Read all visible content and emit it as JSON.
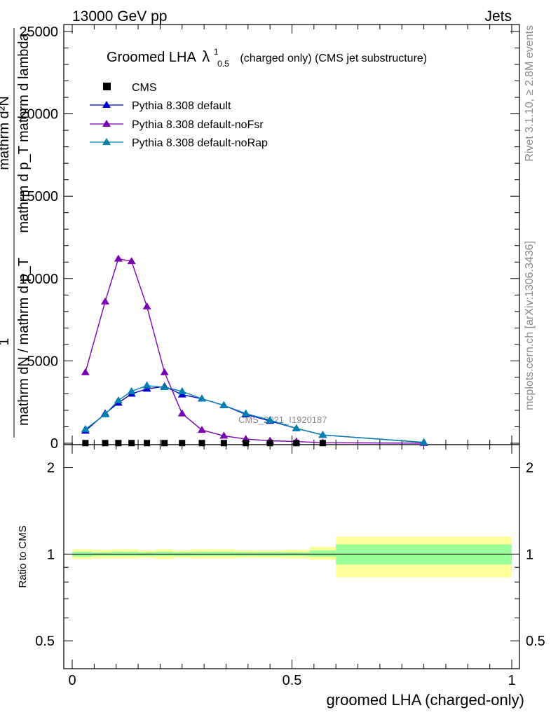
{
  "header": {
    "energy_label": "13000 GeV pp",
    "process_label": "Jets"
  },
  "side_labels": {
    "rivet": "Rivet 3.1.10, ≥ 2.8M events",
    "mcplots": "mcplots.cern.ch [arXiv:1306.3436]"
  },
  "main_panel": {
    "title_prefix": "Groomed LHA",
    "title_lambda": "λ",
    "title_sup": "1",
    "title_sub": "0.5",
    "title_suffix": "(charged only) (CMS jet substructure)",
    "ylabel_numerator": "mathrm d²N",
    "ylabel_numerator_2": "mathrm d p_T mathrm d lambda",
    "ylabel_denominator": "mathrm dN / mathrm d p_T",
    "ylabel_one": "1",
    "ytick_labels": [
      "0",
      "5000",
      "10000",
      "15000",
      "20000",
      "25000"
    ],
    "watermark": "CMS_2021_I1920187",
    "legend": [
      {
        "label": "CMS",
        "marker": "square",
        "color": "#000000"
      },
      {
        "label": "Pythia 8.308 default",
        "marker": "triangle",
        "color": "#0000cc"
      },
      {
        "label": "Pythia 8.308 default-noFsr",
        "marker": "triangle",
        "color": "#7b00b4"
      },
      {
        "label": "Pythia 8.308 default-noRap",
        "marker": "triangle",
        "color": "#0080b0"
      }
    ]
  },
  "ratio_panel": {
    "ylabel": "Ratio to CMS",
    "ytick_labels": [
      "0.5",
      "1",
      "2"
    ]
  },
  "x_axis": {
    "label": "groomed LHA (charged-only)",
    "tick_labels": [
      "0",
      "0.5",
      "1"
    ]
  },
  "colors": {
    "band_outer": "#ffff99",
    "band_inner": "#99ff99",
    "default": "#0000cc",
    "noFsr": "#7b00b4",
    "noRap": "#0080b0"
  },
  "chart_data": {
    "type": "line",
    "xlabel": "groomed LHA (charged-only)",
    "xlim": [
      0,
      1
    ],
    "ylim": [
      0,
      25500
    ],
    "ratio_ylim": [
      0.4,
      2.4
    ],
    "x": [
      0.03,
      0.075,
      0.105,
      0.135,
      0.17,
      0.21,
      0.25,
      0.295,
      0.345,
      0.395,
      0.45,
      0.51,
      0.57,
      0.8
    ],
    "cms": [
      10,
      10,
      10,
      10,
      10,
      10,
      10,
      10,
      10,
      10,
      10,
      10,
      10,
      10
    ],
    "series": [
      {
        "name": "Pythia 8.308 default",
        "values": [
          750,
          1800,
          2450,
          3000,
          3300,
          3450,
          2950,
          2700,
          2300,
          1750,
          1350,
          900,
          500,
          50
        ]
      },
      {
        "name": "Pythia 8.308 default-noFsr",
        "values": [
          4300,
          8600,
          11200,
          11050,
          8300,
          4300,
          1800,
          800,
          450,
          250,
          150,
          100,
          30,
          5
        ]
      },
      {
        "name": "Pythia 8.308 default-noRap",
        "values": [
          850,
          1750,
          2600,
          3150,
          3500,
          3400,
          3150,
          2700,
          2300,
          1800,
          1400,
          900,
          500,
          50
        ]
      }
    ],
    "ratio_bands": [
      {
        "x0": 0.0,
        "x1": 0.045,
        "inner": [
          0.98,
          1.02
        ],
        "outer": [
          0.96,
          1.04
        ]
      },
      {
        "x0": 0.045,
        "x1": 0.09,
        "inner": [
          0.985,
          1.015
        ],
        "outer": [
          0.965,
          1.035
        ]
      },
      {
        "x0": 0.09,
        "x1": 0.12,
        "inner": [
          0.985,
          1.02
        ],
        "outer": [
          0.965,
          1.04
        ]
      },
      {
        "x0": 0.12,
        "x1": 0.15,
        "inner": [
          0.985,
          1.02
        ],
        "outer": [
          0.965,
          1.04
        ]
      },
      {
        "x0": 0.15,
        "x1": 0.19,
        "inner": [
          0.985,
          1.015
        ],
        "outer": [
          0.97,
          1.03
        ]
      },
      {
        "x0": 0.19,
        "x1": 0.23,
        "inner": [
          0.985,
          1.02
        ],
        "outer": [
          0.96,
          1.04
        ]
      },
      {
        "x0": 0.23,
        "x1": 0.27,
        "inner": [
          0.985,
          1.015
        ],
        "outer": [
          0.97,
          1.03
        ]
      },
      {
        "x0": 0.27,
        "x1": 0.32,
        "inner": [
          0.985,
          1.02
        ],
        "outer": [
          0.965,
          1.04
        ]
      },
      {
        "x0": 0.32,
        "x1": 0.37,
        "inner": [
          0.985,
          1.02
        ],
        "outer": [
          0.965,
          1.04
        ]
      },
      {
        "x0": 0.37,
        "x1": 0.42,
        "inner": [
          0.985,
          1.015
        ],
        "outer": [
          0.97,
          1.03
        ]
      },
      {
        "x0": 0.42,
        "x1": 0.48,
        "inner": [
          0.985,
          1.015
        ],
        "outer": [
          0.97,
          1.03
        ]
      },
      {
        "x0": 0.48,
        "x1": 0.54,
        "inner": [
          0.985,
          1.015
        ],
        "outer": [
          0.965,
          1.035
        ]
      },
      {
        "x0": 0.54,
        "x1": 0.6,
        "inner": [
          0.98,
          1.03
        ],
        "outer": [
          0.955,
          1.06
        ]
      },
      {
        "x0": 0.6,
        "x1": 1.0,
        "inner": [
          0.92,
          1.08
        ],
        "outer": [
          0.83,
          1.15
        ]
      }
    ]
  }
}
